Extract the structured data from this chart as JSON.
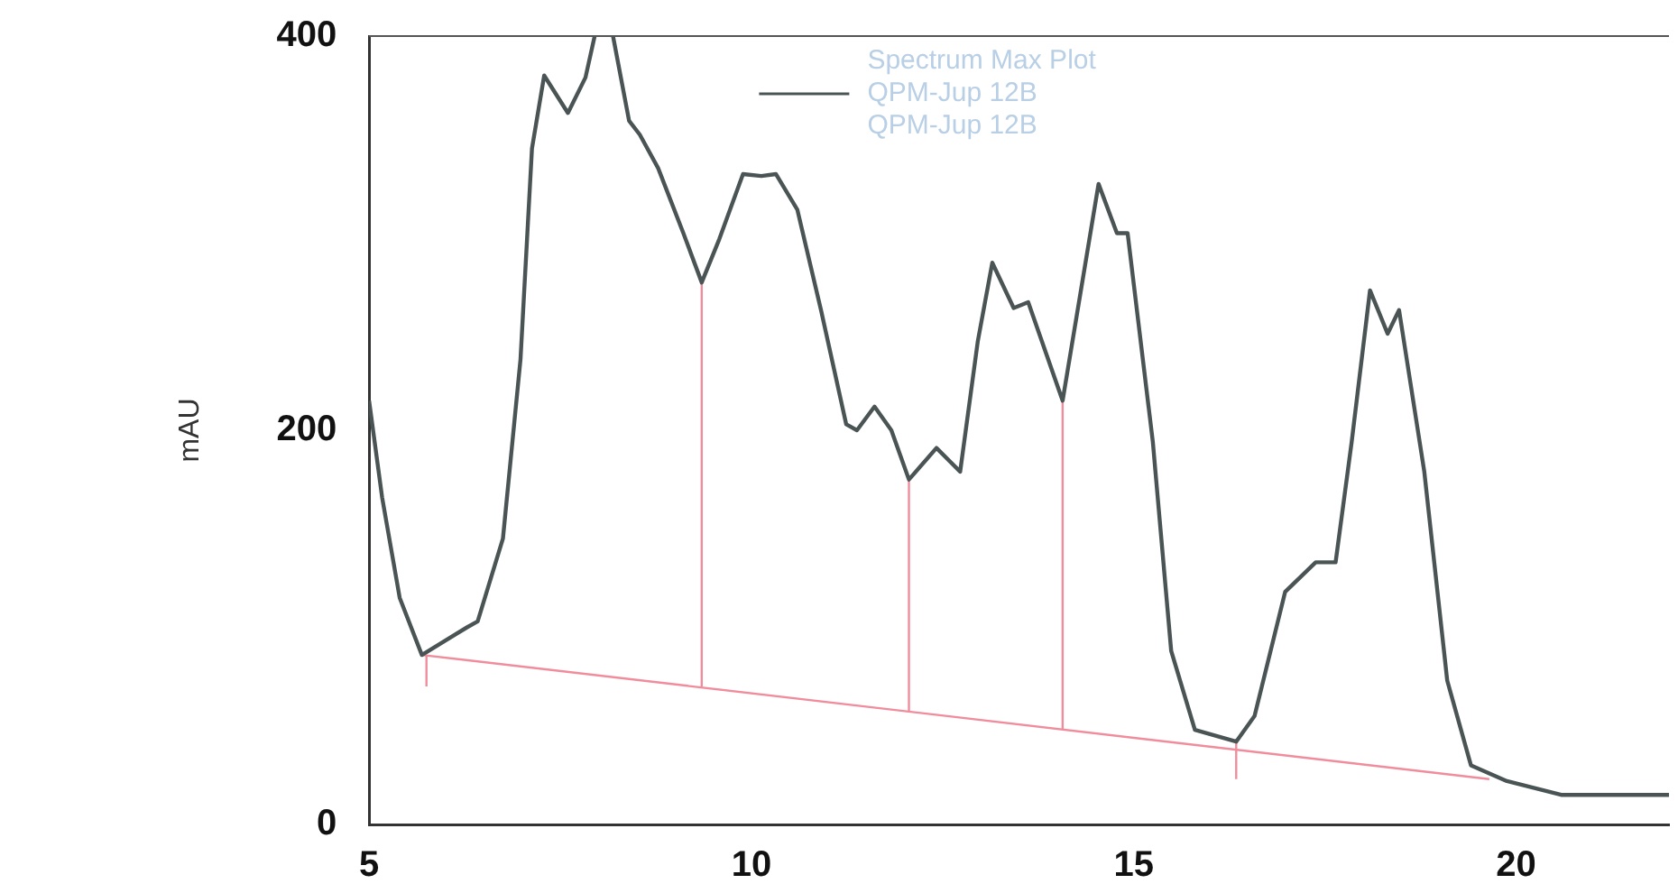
{
  "chart_data": {
    "type": "line",
    "ylabel": "mAU",
    "legend_title": "Spectrum Max Plot",
    "legend": "top",
    "annotations": [
      "QPM-Jup 12B"
    ],
    "xlim": [
      5,
      22
    ],
    "xticks": [
      5,
      10,
      15,
      20
    ],
    "ylim": [
      0,
      400
    ],
    "yticks": [
      0,
      200,
      400
    ],
    "grid": false,
    "marker": "none",
    "line_style": "solid",
    "series": [
      {
        "name": "QPM-Jup 12B",
        "color": "#4a5454",
        "x": [
          5,
          5.17,
          5.4,
          5.69,
          6.28,
          6.42,
          6.75,
          6.98,
          7.13,
          7.29,
          7.6,
          7.83,
          7.95,
          8.07,
          8.19,
          8.4,
          8.54,
          8.78,
          9.11,
          9.35,
          9.58,
          9.89,
          10.13,
          10.32,
          10.6,
          10.91,
          11.24,
          11.38,
          11.61,
          11.83,
          12.06,
          12.42,
          12.73,
          12.96,
          13.15,
          13.43,
          13.62,
          14.07,
          14.54,
          14.78,
          14.92,
          15.25,
          15.49,
          15.8,
          16.34,
          16.58,
          16.98,
          17.38,
          17.64,
          17.85,
          18.09,
          18.32,
          18.47,
          18.8,
          19.1,
          19.41,
          19.88,
          20.59,
          22
        ],
        "values": [
          215,
          166,
          115,
          86,
          100,
          103,
          145,
          236,
          343,
          380,
          361,
          379,
          400,
          null,
          400,
          357,
          350,
          333,
          300,
          275,
          297,
          330,
          329,
          330,
          312,
          261,
          203,
          200,
          212,
          200,
          175,
          191,
          179,
          245,
          285,
          262,
          265,
          215,
          325,
          300,
          300,
          194,
          88,
          48,
          42,
          55,
          118,
          133,
          133,
          194,
          271,
          249,
          261,
          179,
          73,
          30,
          22,
          15,
          15
        ]
      },
      {
        "type": "line",
        "color": "#f08c9c",
        "x": [
          5.69,
          19.65
        ],
        "values": [
          86,
          23
        ]
      },
      {
        "type": "line",
        "color": "#f08c9c",
        "x": [
          5.75,
          5.75
        ],
        "values": [
          70,
          86
        ]
      },
      {
        "type": "line",
        "color": "#f08c9c",
        "x": [
          9.35,
          9.35
        ],
        "values": [
          70,
          275
        ]
      },
      {
        "type": "line",
        "color": "#f08c9c",
        "x": [
          12.06,
          12.06
        ],
        "values": [
          57,
          175
        ]
      },
      {
        "type": "line",
        "color": "#f08c9c",
        "x": [
          14.07,
          14.07
        ],
        "values": [
          48,
          215
        ]
      },
      {
        "type": "line",
        "color": "#f08c9c",
        "x": [
          16.34,
          16.34
        ],
        "values": [
          23,
          42
        ]
      }
    ]
  }
}
